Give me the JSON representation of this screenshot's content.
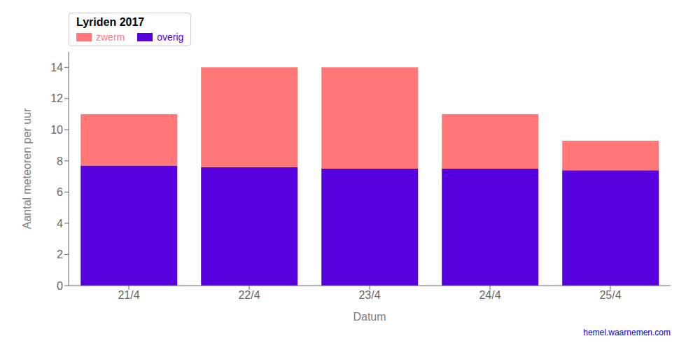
{
  "chart_data": {
    "type": "bar",
    "title": "Lyriden 2017",
    "xlabel": "Datum",
    "ylabel": "Aantal meteoren per uur",
    "categories": [
      "21/4",
      "22/4",
      "23/4",
      "24/4",
      "25/4"
    ],
    "series": [
      {
        "name": "overig",
        "color": "#5500dd",
        "values": [
          7.7,
          7.6,
          7.5,
          7.5,
          7.4
        ]
      },
      {
        "name": "zwerm",
        "color": "#ff7777",
        "values": [
          3.3,
          6.4,
          6.5,
          3.5,
          1.9
        ]
      }
    ],
    "stacked": true,
    "ylim": [
      0,
      15
    ],
    "yticks": [
      0,
      2,
      4,
      6,
      8,
      10,
      12,
      14
    ],
    "grid": false,
    "legend": "upper left",
    "annotations": [
      {
        "text": "hemel.waarnemen.com",
        "color": "#0000cc"
      }
    ]
  }
}
